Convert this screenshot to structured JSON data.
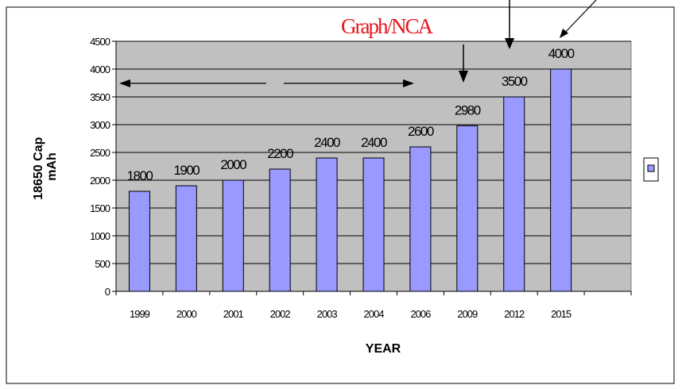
{
  "chart_data": {
    "type": "bar",
    "categories": [
      "1999",
      "2000",
      "2001",
      "2002",
      "2003",
      "2004",
      "2006",
      "2009",
      "2012",
      "2015"
    ],
    "series": [
      {
        "values": [
          1800,
          1900,
          2000,
          2200,
          2400,
          2400,
          2600,
          2980,
          3500,
          4000
        ]
      }
    ],
    "data_labels": [
      "1800",
      "1900",
      "2000",
      "2200",
      "2400",
      "2400",
      "2600",
      "2980",
      "3500",
      "4000"
    ],
    "title": "",
    "xlabel": "YEAR",
    "ylabel_lines": [
      "18650 Cap",
      "mAh"
    ],
    "ylim": [
      0,
      4500
    ],
    "yticks": [
      0,
      500,
      1000,
      1500,
      2000,
      2500,
      3000,
      3500,
      4000,
      4500
    ],
    "grid": true,
    "legend": "right",
    "annotation": "Graph/NCA",
    "colors": {
      "bar": "#9999ff",
      "plot_background": "#c0c0c0",
      "annotation": "#e8161e"
    }
  }
}
